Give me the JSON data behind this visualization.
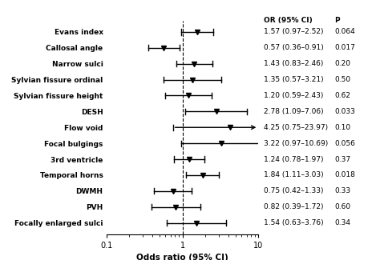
{
  "labels": [
    "Evans index",
    "Callosal angle",
    "Narrow sulci",
    "Sylvian fissure ordinal",
    "Sylvian fissure height",
    "DESH",
    "Flow void",
    "Focal bulgings",
    "3rd ventricle",
    "Temporal horns",
    "DWMH",
    "PVH",
    "Focally enlarged sulci"
  ],
  "or": [
    1.57,
    0.57,
    1.43,
    1.35,
    1.2,
    2.78,
    4.25,
    3.22,
    1.24,
    1.84,
    0.75,
    0.82,
    1.54
  ],
  "ci_low": [
    0.97,
    0.36,
    0.83,
    0.57,
    0.59,
    1.09,
    0.75,
    0.97,
    0.78,
    1.11,
    0.42,
    0.39,
    0.63
  ],
  "ci_high": [
    2.52,
    0.91,
    2.46,
    3.21,
    2.43,
    7.06,
    23.97,
    10.69,
    1.97,
    3.03,
    1.33,
    1.72,
    3.76
  ],
  "or_text": [
    "1.57 (0.97–2.52)",
    "0.57 (0.36–0.91)",
    "1.43 (0.83–2.46)",
    "1.35 (0.57–3.21)",
    "1.20 (0.59–2.43)",
    "2.78 (1.09–7.06)",
    "4.25 (0.75–23.97)",
    "3.22 (0.97–10.69)",
    "1.24 (0.78–1.97)",
    "1.84 (1.11–3.03)",
    "0.75 (0.42–1.33)",
    "0.82 (0.39–1.72)",
    "1.54 (0.63–3.76)"
  ],
  "p_text": [
    "0.064",
    "0.017",
    "0.20",
    "0.50",
    "0.62",
    "0.033",
    "0.10",
    "0.056",
    "0.37",
    "0.018",
    "0.33",
    "0.60",
    "0.34"
  ],
  "arrow_item": "Flow void",
  "xmin": 0.1,
  "xmax": 10,
  "xlabel": "Odds ratio (95% CI)",
  "vline": 1.0,
  "col_header_or": "OR (95% CI)",
  "col_header_p": "P"
}
